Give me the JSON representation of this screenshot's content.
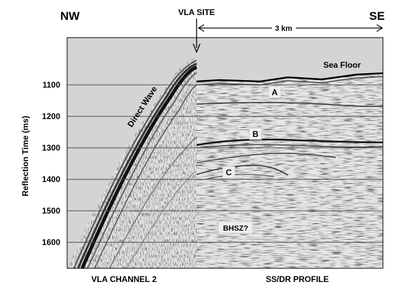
{
  "header": {
    "left_direction": "NW",
    "right_direction": "SE",
    "site_label": "VLA SITE",
    "scale_label": "3 km"
  },
  "axis": {
    "ylabel": "Reflection Time (ms)",
    "ticks": [
      "1100",
      "1200",
      "1300",
      "1400",
      "1500",
      "1600"
    ]
  },
  "annotations": {
    "sea_floor": "Sea Floor",
    "direct_wave": "Direct Wave",
    "reflector_a": "A",
    "reflector_b": "B",
    "reflector_c": "C",
    "bhsz": "BHSZ?"
  },
  "panels": {
    "left_caption": "VLA CHANNEL 2",
    "right_caption": "SS/DR PROFILE"
  },
  "colors": {
    "water_gray": "#d4d4d4",
    "noise_gray": "#e3e3e3",
    "grid_line": "#4a4a4a",
    "label_box": "#eeeeee"
  }
}
